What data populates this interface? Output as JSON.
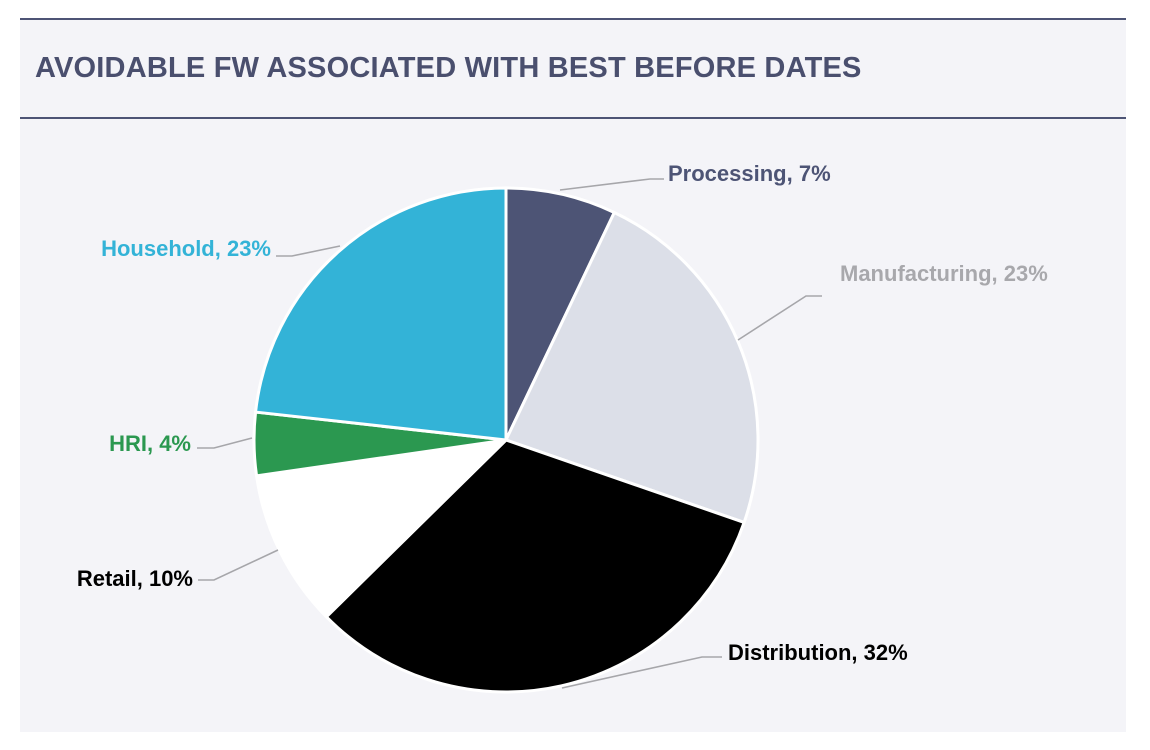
{
  "chart_data": {
    "type": "pie",
    "title": "AVOIDABLE FW ASSOCIATED WITH BEST BEFORE DATES",
    "unit": "%",
    "slices": [
      {
        "name": "Processing",
        "value": 7,
        "label": "Processing, 7%",
        "color": "#4d5475",
        "label_color": "#4d5475"
      },
      {
        "name": "Manufacturing",
        "value": 23,
        "label": "Manufacturing, 23%",
        "color": "#dcdfe8",
        "label_color": "#a8a8ac"
      },
      {
        "name": "Distribution",
        "value": 32,
        "label": "Distribution, 32%",
        "color": "#000000",
        "label_color": "#000000"
      },
      {
        "name": "Retail",
        "value": 10,
        "label": "Retail, 10%",
        "color": "#ffffff",
        "label_color": "#000000"
      },
      {
        "name": "HRI",
        "value": 4,
        "label": "HRI, 4%",
        "color": "#2b9850",
        "label_color": "#2b9850"
      },
      {
        "name": "Household",
        "value": 23,
        "label": "Household, 23%",
        "color": "#33b3d7",
        "label_color": "#33b3d7"
      }
    ]
  },
  "colors": {
    "background": "#f4f4f8",
    "rule": "#4d5475",
    "title": "#4a4f6e",
    "leader": "#a6a6aa"
  }
}
